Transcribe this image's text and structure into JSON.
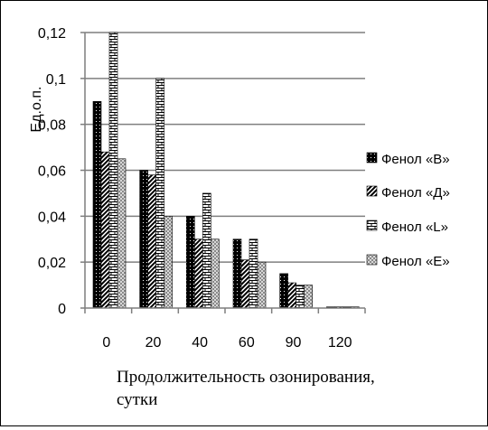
{
  "chart_data": {
    "type": "bar",
    "title": "",
    "ylabel": "Ед.о.п.",
    "xlabel_lines": [
      "Продолжительность озонирования,",
      "сутки"
    ],
    "categories": [
      "0",
      "20",
      "40",
      "60",
      "90",
      "120"
    ],
    "ylim": [
      0,
      0.12
    ],
    "yticks": [
      "0",
      "0,02",
      "0,04",
      "0,06",
      "0,08",
      "0,1",
      "0,12"
    ],
    "ytick_values": [
      0,
      0.02,
      0.04,
      0.06,
      0.08,
      0.1,
      0.12
    ],
    "grid": true,
    "legend_position": "right",
    "series": [
      {
        "name": "Фенол «В»",
        "pattern": "dots-black",
        "values": [
          0.09,
          0.06,
          0.04,
          0.03,
          0.015,
          0.0005
        ]
      },
      {
        "name": "Фенол «Д»",
        "pattern": "diagonal-stripes",
        "values": [
          0.068,
          0.058,
          0.03,
          0.021,
          0.011,
          0.0005
        ]
      },
      {
        "name": "Фенол «L»",
        "pattern": "brick",
        "values": [
          0.12,
          0.1,
          0.05,
          0.03,
          0.01,
          0.0005
        ]
      },
      {
        "name": "Фенол «E»",
        "pattern": "checker-gray",
        "values": [
          0.065,
          0.04,
          0.03,
          0.02,
          0.01,
          0.0005
        ]
      }
    ]
  }
}
